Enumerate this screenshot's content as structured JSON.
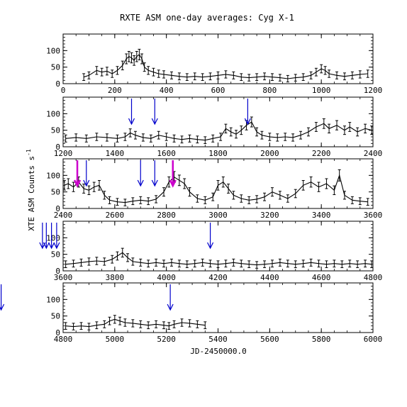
{
  "chart_data": {
    "type": "scatter",
    "title": "RXTE ASM one-day averages: Cyg X-1",
    "xlabel": "JD-2450000.0",
    "ylabel": "XTE ASM Counts s",
    "ylabel_superscript": "-1",
    "ylim": [
      0,
      150
    ],
    "yticks": [
      0,
      50,
      100
    ],
    "colors": {
      "data": "#000000",
      "blue_arrow": "#0000cc",
      "magenta_arrow": "#cc00cc"
    },
    "panels": [
      {
        "xlim": [
          0,
          1200
        ],
        "xticks": [
          0,
          200,
          400,
          600,
          800,
          1000,
          1200
        ],
        "series": [
          {
            "x": 80,
            "y": 20
          },
          {
            "x": 100,
            "y": 25
          },
          {
            "x": 130,
            "y": 40
          },
          {
            "x": 150,
            "y": 35
          },
          {
            "x": 170,
            "y": 38
          },
          {
            "x": 190,
            "y": 30
          },
          {
            "x": 210,
            "y": 40
          },
          {
            "x": 230,
            "y": 55
          },
          {
            "x": 245,
            "y": 75
          },
          {
            "x": 255,
            "y": 82
          },
          {
            "x": 265,
            "y": 78
          },
          {
            "x": 275,
            "y": 70
          },
          {
            "x": 285,
            "y": 82
          },
          {
            "x": 295,
            "y": 88
          },
          {
            "x": 305,
            "y": 75
          },
          {
            "x": 315,
            "y": 50
          },
          {
            "x": 330,
            "y": 40
          },
          {
            "x": 350,
            "y": 35
          },
          {
            "x": 370,
            "y": 30
          },
          {
            "x": 390,
            "y": 28
          },
          {
            "x": 420,
            "y": 25
          },
          {
            "x": 450,
            "y": 22
          },
          {
            "x": 480,
            "y": 20
          },
          {
            "x": 510,
            "y": 22
          },
          {
            "x": 540,
            "y": 20
          },
          {
            "x": 570,
            "y": 22
          },
          {
            "x": 600,
            "y": 25
          },
          {
            "x": 630,
            "y": 28
          },
          {
            "x": 660,
            "y": 25
          },
          {
            "x": 690,
            "y": 20
          },
          {
            "x": 720,
            "y": 18
          },
          {
            "x": 750,
            "y": 20
          },
          {
            "x": 780,
            "y": 22
          },
          {
            "x": 810,
            "y": 20
          },
          {
            "x": 840,
            "y": 18
          },
          {
            "x": 870,
            "y": 15
          },
          {
            "x": 900,
            "y": 18
          },
          {
            "x": 930,
            "y": 20
          },
          {
            "x": 960,
            "y": 25
          },
          {
            "x": 980,
            "y": 35
          },
          {
            "x": 1000,
            "y": 45
          },
          {
            "x": 1015,
            "y": 40
          },
          {
            "x": 1030,
            "y": 30
          },
          {
            "x": 1060,
            "y": 25
          },
          {
            "x": 1090,
            "y": 22
          },
          {
            "x": 1120,
            "y": 25
          },
          {
            "x": 1150,
            "y": 28
          },
          {
            "x": 1180,
            "y": 30
          }
        ],
        "arrows": []
      },
      {
        "xlim": [
          1200,
          2400
        ],
        "xticks": [
          1200,
          1400,
          1600,
          1800,
          2000,
          2200,
          2400
        ],
        "series": [
          {
            "x": 1210,
            "y": 25
          },
          {
            "x": 1250,
            "y": 28
          },
          {
            "x": 1290,
            "y": 25
          },
          {
            "x": 1330,
            "y": 30
          },
          {
            "x": 1370,
            "y": 28
          },
          {
            "x": 1410,
            "y": 25
          },
          {
            "x": 1440,
            "y": 30
          },
          {
            "x": 1460,
            "y": 42
          },
          {
            "x": 1480,
            "y": 35
          },
          {
            "x": 1510,
            "y": 28
          },
          {
            "x": 1540,
            "y": 25
          },
          {
            "x": 1570,
            "y": 35
          },
          {
            "x": 1600,
            "y": 30
          },
          {
            "x": 1630,
            "y": 25
          },
          {
            "x": 1660,
            "y": 22
          },
          {
            "x": 1690,
            "y": 25
          },
          {
            "x": 1720,
            "y": 22
          },
          {
            "x": 1750,
            "y": 20
          },
          {
            "x": 1780,
            "y": 25
          },
          {
            "x": 1810,
            "y": 30
          },
          {
            "x": 1830,
            "y": 55
          },
          {
            "x": 1850,
            "y": 45
          },
          {
            "x": 1870,
            "y": 38
          },
          {
            "x": 1890,
            "y": 50
          },
          {
            "x": 1910,
            "y": 65
          },
          {
            "x": 1930,
            "y": 75
          },
          {
            "x": 1950,
            "y": 45
          },
          {
            "x": 1970,
            "y": 35
          },
          {
            "x": 2000,
            "y": 30
          },
          {
            "x": 2030,
            "y": 28
          },
          {
            "x": 2060,
            "y": 30
          },
          {
            "x": 2090,
            "y": 28
          },
          {
            "x": 2120,
            "y": 35
          },
          {
            "x": 2150,
            "y": 45
          },
          {
            "x": 2180,
            "y": 60
          },
          {
            "x": 2210,
            "y": 70
          },
          {
            "x": 2230,
            "y": 55
          },
          {
            "x": 2260,
            "y": 65
          },
          {
            "x": 2290,
            "y": 50
          },
          {
            "x": 2310,
            "y": 60
          },
          {
            "x": 2340,
            "y": 45
          },
          {
            "x": 2370,
            "y": 55
          },
          {
            "x": 2395,
            "y": 50
          }
        ],
        "arrows": [
          {
            "x": 1465,
            "color": "blue"
          },
          {
            "x": 1555,
            "color": "blue"
          },
          {
            "x": 1915,
            "color": "blue"
          }
        ]
      },
      {
        "xlim": [
          2400,
          3600
        ],
        "xticks": [
          2400,
          2600,
          2800,
          3000,
          3200,
          3400,
          3600
        ],
        "series": [
          {
            "x": 2405,
            "y": 70
          },
          {
            "x": 2420,
            "y": 75
          },
          {
            "x": 2440,
            "y": 65
          },
          {
            "x": 2460,
            "y": 80
          },
          {
            "x": 2480,
            "y": 60
          },
          {
            "x": 2500,
            "y": 55
          },
          {
            "x": 2520,
            "y": 65
          },
          {
            "x": 2540,
            "y": 70
          },
          {
            "x": 2560,
            "y": 40
          },
          {
            "x": 2580,
            "y": 25
          },
          {
            "x": 2610,
            "y": 20
          },
          {
            "x": 2640,
            "y": 18
          },
          {
            "x": 2670,
            "y": 22
          },
          {
            "x": 2700,
            "y": 25
          },
          {
            "x": 2730,
            "y": 22
          },
          {
            "x": 2760,
            "y": 28
          },
          {
            "x": 2790,
            "y": 50
          },
          {
            "x": 2810,
            "y": 80
          },
          {
            "x": 2830,
            "y": 95
          },
          {
            "x": 2850,
            "y": 85
          },
          {
            "x": 2870,
            "y": 75
          },
          {
            "x": 2890,
            "y": 50
          },
          {
            "x": 2920,
            "y": 30
          },
          {
            "x": 2950,
            "y": 25
          },
          {
            "x": 2980,
            "y": 35
          },
          {
            "x": 3000,
            "y": 70
          },
          {
            "x": 3020,
            "y": 80
          },
          {
            "x": 3040,
            "y": 60
          },
          {
            "x": 3060,
            "y": 40
          },
          {
            "x": 3090,
            "y": 30
          },
          {
            "x": 3120,
            "y": 25
          },
          {
            "x": 3150,
            "y": 28
          },
          {
            "x": 3180,
            "y": 35
          },
          {
            "x": 3210,
            "y": 50
          },
          {
            "x": 3240,
            "y": 40
          },
          {
            "x": 3270,
            "y": 30
          },
          {
            "x": 3300,
            "y": 45
          },
          {
            "x": 3330,
            "y": 70
          },
          {
            "x": 3360,
            "y": 80
          },
          {
            "x": 3390,
            "y": 65
          },
          {
            "x": 3420,
            "y": 75
          },
          {
            "x": 3450,
            "y": 55
          },
          {
            "x": 3470,
            "y": 100
          },
          {
            "x": 3490,
            "y": 40
          },
          {
            "x": 3520,
            "y": 25
          },
          {
            "x": 3550,
            "y": 22
          },
          {
            "x": 3580,
            "y": 20
          }
        ],
        "arrows": [
          {
            "x": 2455,
            "color": "magenta"
          },
          {
            "x": 2490,
            "color": "blue"
          },
          {
            "x": 2700,
            "color": "blue"
          },
          {
            "x": 2755,
            "color": "blue"
          },
          {
            "x": 2825,
            "color": "magenta"
          }
        ]
      },
      {
        "xlim": [
          3600,
          4800
        ],
        "xticks": [
          3600,
          3800,
          4000,
          4200,
          4400,
          4600,
          4800
        ],
        "series": [
          {
            "x": 3610,
            "y": 20
          },
          {
            "x": 3640,
            "y": 22
          },
          {
            "x": 3670,
            "y": 25
          },
          {
            "x": 3700,
            "y": 28
          },
          {
            "x": 3730,
            "y": 30
          },
          {
            "x": 3760,
            "y": 28
          },
          {
            "x": 3790,
            "y": 35
          },
          {
            "x": 3810,
            "y": 45
          },
          {
            "x": 3830,
            "y": 55
          },
          {
            "x": 3850,
            "y": 40
          },
          {
            "x": 3870,
            "y": 28
          },
          {
            "x": 3900,
            "y": 25
          },
          {
            "x": 3930,
            "y": 22
          },
          {
            "x": 3960,
            "y": 25
          },
          {
            "x": 3990,
            "y": 22
          },
          {
            "x": 4020,
            "y": 25
          },
          {
            "x": 4050,
            "y": 22
          },
          {
            "x": 4080,
            "y": 20
          },
          {
            "x": 4110,
            "y": 22
          },
          {
            "x": 4140,
            "y": 25
          },
          {
            "x": 4170,
            "y": 22
          },
          {
            "x": 4200,
            "y": 20
          },
          {
            "x": 4230,
            "y": 22
          },
          {
            "x": 4260,
            "y": 25
          },
          {
            "x": 4290,
            "y": 22
          },
          {
            "x": 4320,
            "y": 20
          },
          {
            "x": 4350,
            "y": 18
          },
          {
            "x": 4380,
            "y": 20
          },
          {
            "x": 4410,
            "y": 22
          },
          {
            "x": 4440,
            "y": 25
          },
          {
            "x": 4470,
            "y": 22
          },
          {
            "x": 4500,
            "y": 20
          },
          {
            "x": 4530,
            "y": 22
          },
          {
            "x": 4560,
            "y": 25
          },
          {
            "x": 4590,
            "y": 22
          },
          {
            "x": 4620,
            "y": 20
          },
          {
            "x": 4650,
            "y": 22
          },
          {
            "x": 4680,
            "y": 20
          },
          {
            "x": 4710,
            "y": 22
          },
          {
            "x": 4740,
            "y": 20
          },
          {
            "x": 4770,
            "y": 22
          },
          {
            "x": 4795,
            "y": 20
          }
        ],
        "arrows": [
          {
            "x": 3520,
            "color": "blue"
          },
          {
            "x": 3535,
            "color": "blue"
          },
          {
            "x": 3555,
            "color": "blue"
          },
          {
            "x": 3575,
            "color": "blue"
          },
          {
            "x": 4170,
            "color": "blue"
          }
        ]
      },
      {
        "xlim": [
          4800,
          6000
        ],
        "xticks": [
          4800,
          5000,
          5200,
          5400,
          5600,
          5800,
          6000
        ],
        "series": [
          {
            "x": 4810,
            "y": 20
          },
          {
            "x": 4840,
            "y": 18
          },
          {
            "x": 4870,
            "y": 20
          },
          {
            "x": 4900,
            "y": 18
          },
          {
            "x": 4930,
            "y": 22
          },
          {
            "x": 4960,
            "y": 25
          },
          {
            "x": 4980,
            "y": 35
          },
          {
            "x": 5000,
            "y": 40
          },
          {
            "x": 5020,
            "y": 35
          },
          {
            "x": 5040,
            "y": 30
          },
          {
            "x": 5070,
            "y": 28
          },
          {
            "x": 5100,
            "y": 25
          },
          {
            "x": 5130,
            "y": 22
          },
          {
            "x": 5160,
            "y": 25
          },
          {
            "x": 5190,
            "y": 22
          },
          {
            "x": 5210,
            "y": 20
          },
          {
            "x": 5230,
            "y": 25
          },
          {
            "x": 5260,
            "y": 30
          },
          {
            "x": 5290,
            "y": 28
          },
          {
            "x": 5320,
            "y": 25
          },
          {
            "x": 5350,
            "y": 22
          }
        ],
        "arrows": [
          {
            "x": 4560,
            "color": "blue"
          },
          {
            "x": 5215,
            "color": "blue"
          }
        ]
      }
    ]
  }
}
